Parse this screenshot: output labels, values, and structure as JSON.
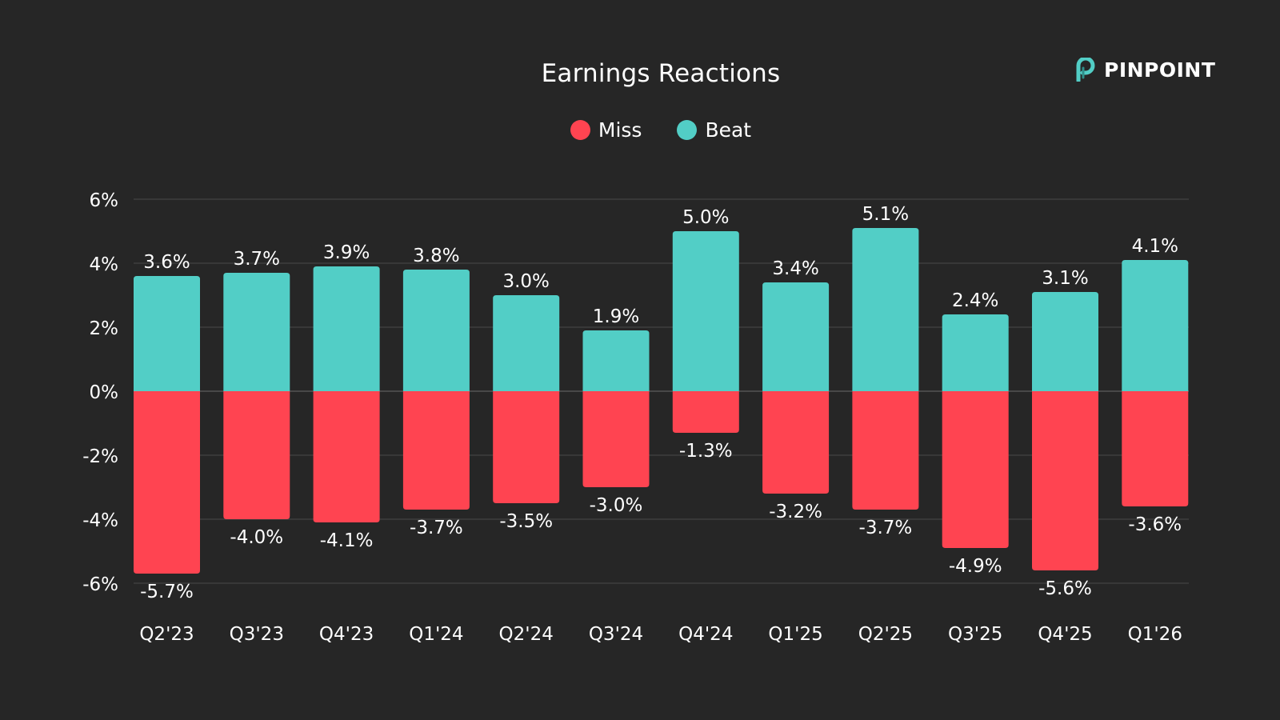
{
  "brand": {
    "name": "PINPOINT"
  },
  "chart_data": {
    "type": "bar",
    "title": "Earnings Reactions",
    "xlabel": "",
    "ylabel": "",
    "ylim": [
      -6,
      6
    ],
    "yticks": [
      6,
      4,
      2,
      0,
      -2,
      -4,
      -6
    ],
    "ytick_labels": [
      "6%",
      "4%",
      "2%",
      "0%",
      "-2%",
      "-4%",
      "-6%"
    ],
    "grid": true,
    "legend_position": "top-center",
    "categories": [
      "Q2'23",
      "Q3'23",
      "Q4'23",
      "Q1'24",
      "Q2'24",
      "Q3'24",
      "Q4'24",
      "Q1'25",
      "Q2'25",
      "Q3'25",
      "Q4'25",
      "Q1'26"
    ],
    "series": [
      {
        "name": "Miss",
        "color": "#ff4451",
        "values": [
          -5.7,
          -4.0,
          -4.1,
          -3.7,
          -3.5,
          -3.0,
          -1.3,
          -3.2,
          -3.7,
          -4.9,
          -5.6,
          -3.6
        ],
        "labels": [
          "-5.7%",
          "-4.0%",
          "-4.1%",
          "-3.7%",
          "-3.5%",
          "-3.0%",
          "-1.3%",
          "-3.2%",
          "-3.7%",
          "-4.9%",
          "-5.6%",
          "-3.6%"
        ]
      },
      {
        "name": "Beat",
        "color": "#52cec6",
        "values": [
          3.6,
          3.7,
          3.9,
          3.8,
          3.0,
          1.9,
          5.0,
          3.4,
          5.1,
          2.4,
          3.1,
          4.1
        ],
        "labels": [
          "3.6%",
          "3.7%",
          "3.9%",
          "3.8%",
          "3.0%",
          "1.9%",
          "5.0%",
          "3.4%",
          "5.1%",
          "2.4%",
          "3.1%",
          "4.1%"
        ]
      }
    ]
  }
}
